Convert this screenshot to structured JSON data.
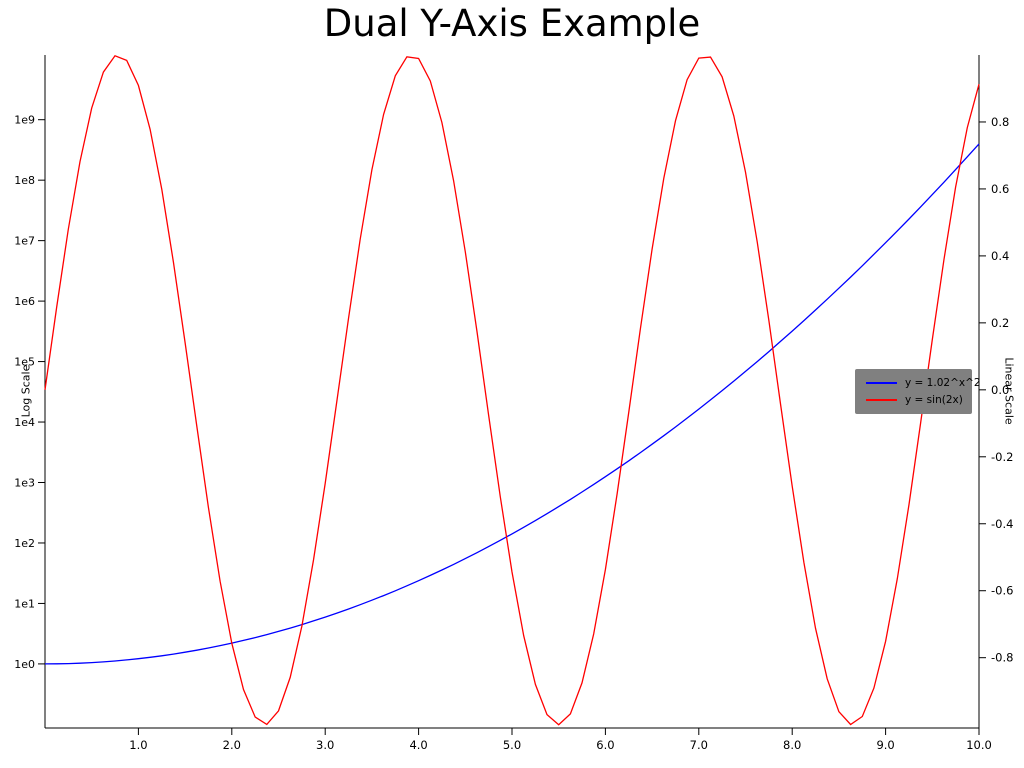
{
  "title": "Dual Y-Axis Example",
  "legend": {
    "position": "center right",
    "entries": [
      {
        "label": "y = 1.02^x^2",
        "color": "#0000ff"
      },
      {
        "label": "y = sin(2x)",
        "color": "#ff0000"
      }
    ]
  },
  "chart_data": {
    "type": "line",
    "title": "Dual Y-Axis Example",
    "grid": false,
    "background": "#ffffff",
    "x_axis": {
      "range": [
        0,
        10
      ],
      "ticks": [
        1,
        2,
        3,
        4,
        5,
        6,
        7,
        8,
        9,
        10
      ],
      "tick_labels": [
        "1.0",
        "2.0",
        "3.0",
        "4.0",
        "5.0",
        "6.0",
        "7.0",
        "8.0",
        "9.0",
        "10.0"
      ]
    },
    "left_axis": {
      "label": "Log Scale",
      "scale": "log",
      "range_log10": [
        -1.06,
        10.07
      ],
      "ticks": [
        1,
        10,
        100,
        1000,
        10000,
        100000,
        1000000,
        10000000,
        100000000,
        1000000000
      ],
      "tick_labels": [
        "1e0",
        "1e1",
        "1e2",
        "1e3",
        "1e4",
        "1e5",
        "1e6",
        "1e7",
        "1e8",
        "1e9"
      ]
    },
    "right_axis": {
      "label": "Linear Scale",
      "scale": "linear",
      "range": [
        -1.01,
        1.0
      ],
      "ticks": [
        0.8,
        0.6,
        0.4,
        0.2,
        0.0,
        -0.2,
        -0.4,
        -0.6,
        -0.8
      ],
      "tick_labels": [
        "0.8",
        "0.6",
        "0.4",
        "0.2",
        "0.0",
        "-0.2",
        "-0.4",
        "-0.6",
        "-0.8"
      ]
    },
    "series": [
      {
        "name": "y = 1.02^x^2",
        "axis": "left",
        "color": "#0000ff",
        "x": [
          0,
          0.125,
          0.25,
          0.375,
          0.5,
          0.625,
          0.75,
          0.875,
          1,
          1.125,
          1.25,
          1.375,
          1.5,
          1.625,
          1.75,
          1.875,
          2,
          2.125,
          2.25,
          2.375,
          2.5,
          2.625,
          2.75,
          2.875,
          3,
          3.125,
          3.25,
          3.375,
          3.5,
          3.625,
          3.75,
          3.875,
          4,
          4.125,
          4.25,
          4.375,
          4.5,
          4.625,
          4.75,
          4.875,
          5,
          5.125,
          5.25,
          5.375,
          5.5,
          5.625,
          5.75,
          5.875,
          6,
          6.125,
          6.25,
          6.375,
          6.5,
          6.625,
          6.75,
          6.875,
          7,
          7.125,
          7.25,
          7.375,
          7.5,
          7.625,
          7.75,
          7.875,
          8,
          8.125,
          8.25,
          8.375,
          8.5,
          8.625,
          8.75,
          8.875,
          9,
          9.125,
          9.25,
          9.375,
          9.5,
          9.625,
          9.75,
          9.875,
          10
        ],
        "y": [
          1,
          1.003,
          1.013,
          1.028,
          1.051,
          1.08,
          1.118,
          1.164,
          1.219,
          1.285,
          1.363,
          1.454,
          1.561,
          1.687,
          1.834,
          2.006,
          2.208,
          2.446,
          2.725,
          3.055,
          3.447,
          3.913,
          4.471,
          5.139,
          5.943,
          6.916,
          8.1,
          9.541,
          11.31,
          13.49,
          16.2,
          19.57,
          23.77,
          29.07,
          35.76,
          44.27,
          55.13,
          69.1,
          87.17,
          110.6,
          141.3,
          181.5,
          234.6,
          305.3,
          399.5,
          526.1,
          697.3,
          929.7,
          1248,
          1684,
          2288,
          3127,
          4300,
          5949,
          8286,
          11610,
          16370,
          23220,
          33140,
          47600,
          68790,
          100000,
          146400,
          215500,
          319100,
          475700,
          713400,
          1077000,
          1635000,
          2498000,
          3840000,
          5940000,
          9247000,
          14480000,
          22830000,
          36200000,
          57750000,
          92700000,
          149700000,
          243400000,
          398100000
        ]
      },
      {
        "name": "y = sin(2x)",
        "axis": "right",
        "color": "#ff0000",
        "x": [
          0,
          0.125,
          0.25,
          0.375,
          0.5,
          0.625,
          0.75,
          0.875,
          1,
          1.125,
          1.25,
          1.375,
          1.5,
          1.625,
          1.75,
          1.875,
          2,
          2.125,
          2.25,
          2.375,
          2.5,
          2.625,
          2.75,
          2.875,
          3,
          3.125,
          3.25,
          3.375,
          3.5,
          3.625,
          3.75,
          3.875,
          4,
          4.125,
          4.25,
          4.375,
          4.5,
          4.625,
          4.75,
          4.875,
          5,
          5.125,
          5.25,
          5.375,
          5.5,
          5.625,
          5.75,
          5.875,
          6,
          6.125,
          6.25,
          6.375,
          6.5,
          6.625,
          6.75,
          6.875,
          7,
          7.125,
          7.25,
          7.375,
          7.5,
          7.625,
          7.75,
          7.875,
          8,
          8.125,
          8.25,
          8.375,
          8.5,
          8.625,
          8.75,
          8.875,
          9,
          9.125,
          9.25,
          9.375,
          9.5,
          9.625,
          9.75,
          9.875,
          10
        ],
        "y": [
          0,
          0.2474,
          0.4794,
          0.6816,
          0.8415,
          0.949,
          0.9975,
          0.9839,
          0.9093,
          0.7781,
          0.5985,
          0.3817,
          0.1411,
          -0.1082,
          -0.3508,
          -0.5716,
          -0.7568,
          -0.895,
          -0.9775,
          -0.9993,
          -0.9589,
          -0.8589,
          -0.7055,
          -0.5083,
          -0.2794,
          -0.0332,
          0.2151,
          0.45,
          0.657,
          0.8227,
          0.938,
          0.9946,
          0.9894,
          0.9224,
          0.7985,
          0.6247,
          0.4121,
          0.1739,
          -0.0752,
          -0.3195,
          -0.544,
          -0.7342,
          -0.8797,
          -0.97,
          -1,
          -0.9679,
          -0.8754,
          -0.729,
          -0.5366,
          -0.3111,
          -0.0663,
          0.1826,
          0.4202,
          0.6316,
          0.8038,
          0.9262,
          0.9906,
          0.9937,
          0.9349,
          0.8181,
          0.6503,
          0.4421,
          0.2064,
          -0.042,
          -0.2879,
          -0.5157,
          -0.7118,
          -0.8632,
          -0.9614,
          -0.9996,
          -0.9756,
          -0.8909,
          -0.751,
          -0.5645,
          -0.3425,
          -0.0994,
          0.1499,
          0.3898,
          0.6055,
          0.7833,
          0.9129
        ]
      }
    ]
  }
}
